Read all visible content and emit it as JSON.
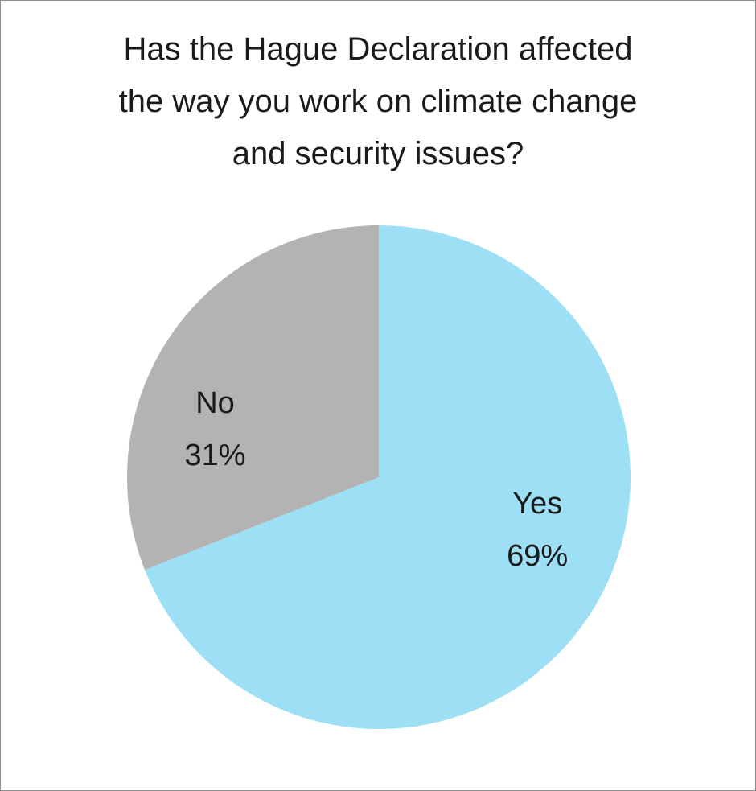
{
  "chart_data": {
    "type": "pie",
    "title": "Has the Hague Declaration  affected\nthe way you work on climate change\nand security issues?",
    "categories": [
      "Yes",
      "No"
    ],
    "values": [
      69,
      31
    ],
    "value_labels": [
      "69%",
      "31%"
    ],
    "colors": [
      "#9ddff5",
      "#b3b3b3"
    ],
    "legend": "none",
    "start_angle_deg": 0,
    "direction": "clockwise"
  }
}
